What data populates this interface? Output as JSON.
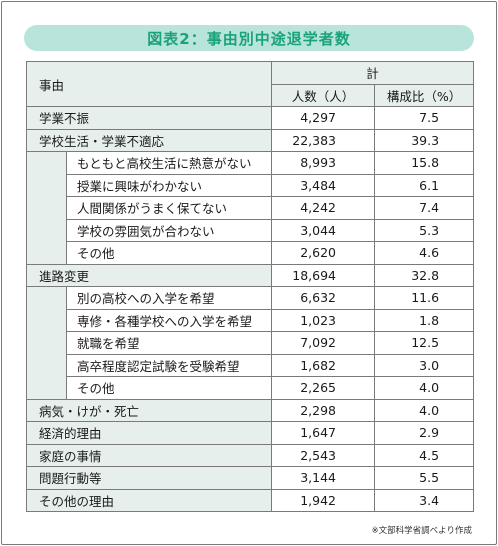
{
  "title": "図表2：事由別中途退学者数",
  "header": {
    "reason": "事由",
    "total": "計",
    "count": "人数（人）",
    "ratio": "構成比（%）"
  },
  "rows": [
    {
      "label": "学業不振",
      "count": "4,297",
      "ratio": "7.5"
    },
    {
      "label": "学校生活・学業不適応",
      "count": "22,383",
      "ratio": "39.3"
    },
    {
      "label": "もともと高校生活に熱意がない",
      "count": "8,993",
      "ratio": "15.8"
    },
    {
      "label": "授業に興味がわかない",
      "count": "3,484",
      "ratio": "6.1"
    },
    {
      "label": "人間関係がうまく保てない",
      "count": "4,242",
      "ratio": "7.4"
    },
    {
      "label": "学校の雰囲気が合わない",
      "count": "3,044",
      "ratio": "5.3"
    },
    {
      "label": "その他",
      "count": "2,620",
      "ratio": "4.6"
    },
    {
      "label": "進路変更",
      "count": "18,694",
      "ratio": "32.8"
    },
    {
      "label": "別の高校への入学を希望",
      "count": "6,632",
      "ratio": "11.6"
    },
    {
      "label": "専修・各種学校への入学を希望",
      "count": "1,023",
      "ratio": "1.8"
    },
    {
      "label": "就職を希望",
      "count": "7,092",
      "ratio": "12.5"
    },
    {
      "label": "高卒程度認定試験を受験希望",
      "count": "1,682",
      "ratio": "3.0"
    },
    {
      "label": "その他",
      "count": "2,265",
      "ratio": "4.0"
    },
    {
      "label": "病気・けが・死亡",
      "count": "2,298",
      "ratio": "4.0"
    },
    {
      "label": "経済的理由",
      "count": "1,647",
      "ratio": "2.9"
    },
    {
      "label": "家庭の事情",
      "count": "2,543",
      "ratio": "4.5"
    },
    {
      "label": "問題行動等",
      "count": "3,144",
      "ratio": "5.5"
    },
    {
      "label": "その他の理由",
      "count": "1,942",
      "ratio": "3.4"
    }
  ],
  "note": "※文部科学省調べより作成"
}
